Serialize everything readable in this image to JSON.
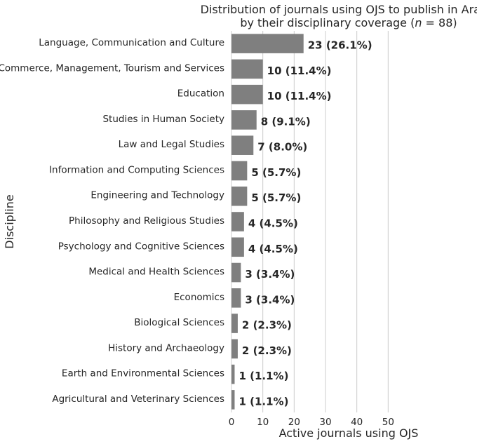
{
  "chart_data": {
    "type": "bar",
    "orientation": "horizontal",
    "title_line1": "Distribution of journals using OJS to publish in Arabic",
    "title_line2_prefix": "by their disciplinary coverage (",
    "title_line2_italic": "n",
    "title_line2_suffix": " = 88)",
    "xlabel": "Active journals using OJS",
    "ylabel": "Discipline",
    "xlim": [
      0,
      60
    ],
    "xticks": [
      "0",
      "10",
      "20",
      "30",
      "40",
      "50"
    ],
    "grid": "vertical",
    "bar_color": "#7f7f7f",
    "categories": [
      "Language, Communication and Culture",
      "Commerce, Management, Tourism and Services",
      "Education",
      "Studies in Human Society",
      "Law and Legal Studies",
      "Information and Computing Sciences",
      "Engineering and Technology",
      "Philosophy and Religious Studies",
      "Psychology and Cognitive Sciences",
      "Medical and Health Sciences",
      "Economics",
      "Biological Sciences",
      "History and Archaeology",
      "Earth and Environmental Sciences",
      "Agricultural and Veterinary Sciences"
    ],
    "values": [
      23,
      10,
      10,
      8,
      7,
      5,
      5,
      4,
      4,
      3,
      3,
      2,
      2,
      1,
      1
    ],
    "data_labels": [
      "23 (26.1%)",
      "10 (11.4%)",
      "10 (11.4%)",
      "8 (9.1%)",
      "7 (8.0%)",
      "5 (5.7%)",
      "5 (5.7%)",
      "4 (4.5%)",
      "4 (4.5%)",
      "3 (3.4%)",
      "3 (3.4%)",
      "2 (2.3%)",
      "2 (2.3%)",
      "1 (1.1%)",
      "1 (1.1%)"
    ]
  }
}
